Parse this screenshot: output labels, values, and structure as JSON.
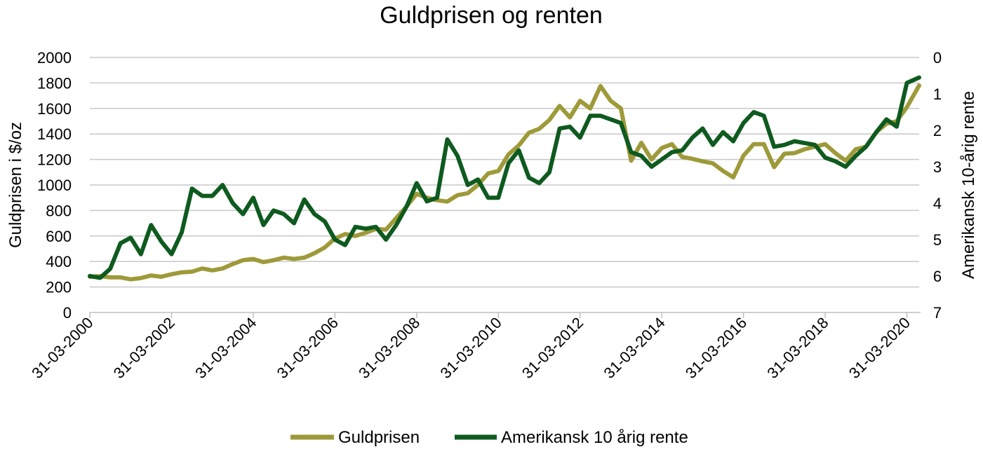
{
  "chart_data": {
    "type": "line",
    "title": "Guldprisen og renten",
    "ylabel": "Guldprisen i $/oz",
    "y2label": "Amerikansk 10-årig rente",
    "ylim": [
      0,
      2000
    ],
    "y2lim": [
      0,
      7
    ],
    "y2_inverted": true,
    "yticks": [
      "0",
      "200",
      "400",
      "600",
      "800",
      "1000",
      "1200",
      "1400",
      "1600",
      "1800",
      "2000"
    ],
    "y2ticks": [
      "0",
      "1",
      "2",
      "3",
      "4",
      "5",
      "6",
      "7"
    ],
    "xticks": [
      "31-03-2000",
      "31-03-2002",
      "31-03-2004",
      "31-03-2006",
      "31-03-2008",
      "31-03-2010",
      "31-03-2012",
      "31-03-2014",
      "31-03-2016",
      "31-03-2018",
      "31-03-2020"
    ],
    "xlim": [
      2000.25,
      2020.55
    ],
    "grid": "horizontal",
    "legend_position": "bottom",
    "colors": {
      "gold": "#9e9a3a",
      "rate": "#0e5a1f"
    },
    "series": [
      {
        "name": "Guldprisen",
        "axis": "left",
        "x": [
          2000.25,
          2000.5,
          2000.75,
          2001.0,
          2001.25,
          2001.5,
          2001.75,
          2002.0,
          2002.25,
          2002.5,
          2002.75,
          2003.0,
          2003.25,
          2003.5,
          2003.75,
          2004.0,
          2004.25,
          2004.5,
          2004.75,
          2005.0,
          2005.25,
          2005.5,
          2005.75,
          2006.0,
          2006.25,
          2006.5,
          2006.75,
          2007.0,
          2007.25,
          2007.5,
          2007.75,
          2008.0,
          2008.25,
          2008.5,
          2008.75,
          2009.0,
          2009.25,
          2009.5,
          2009.75,
          2010.0,
          2010.25,
          2010.5,
          2010.75,
          2011.0,
          2011.25,
          2011.5,
          2011.75,
          2012.0,
          2012.25,
          2012.5,
          2012.75,
          2013.0,
          2013.25,
          2013.5,
          2013.75,
          2014.0,
          2014.25,
          2014.5,
          2014.75,
          2015.0,
          2015.25,
          2015.5,
          2015.75,
          2016.0,
          2016.25,
          2016.5,
          2016.75,
          2017.0,
          2017.25,
          2017.5,
          2017.75,
          2018.0,
          2018.25,
          2018.5,
          2018.75,
          2019.0,
          2019.25,
          2019.5,
          2019.75,
          2020.0,
          2020.25,
          2020.55
        ],
        "values": [
          280,
          285,
          275,
          275,
          260,
          270,
          290,
          280,
          300,
          315,
          320,
          345,
          330,
          345,
          380,
          410,
          420,
          395,
          410,
          430,
          420,
          430,
          465,
          510,
          580,
          615,
          600,
          625,
          655,
          650,
          740,
          830,
          930,
          900,
          880,
          870,
          920,
          935,
          1000,
          1090,
          1110,
          1240,
          1310,
          1410,
          1440,
          1510,
          1620,
          1530,
          1660,
          1600,
          1775,
          1660,
          1600,
          1190,
          1330,
          1200,
          1290,
          1320,
          1220,
          1205,
          1185,
          1170,
          1110,
          1060,
          1230,
          1320,
          1320,
          1140,
          1245,
          1250,
          1280,
          1300,
          1320,
          1250,
          1190,
          1280,
          1300,
          1415,
          1480,
          1500,
          1610,
          1780
        ]
      },
      {
        "name": "Amerikansk 10 årig rente",
        "axis": "right",
        "x": [
          2000.25,
          2000.5,
          2000.75,
          2001.0,
          2001.25,
          2001.5,
          2001.75,
          2002.0,
          2002.25,
          2002.5,
          2002.75,
          2003.0,
          2003.25,
          2003.5,
          2003.75,
          2004.0,
          2004.25,
          2004.5,
          2004.75,
          2005.0,
          2005.25,
          2005.5,
          2005.75,
          2006.0,
          2006.25,
          2006.5,
          2006.75,
          2007.0,
          2007.25,
          2007.5,
          2007.75,
          2008.0,
          2008.25,
          2008.5,
          2008.75,
          2009.0,
          2009.25,
          2009.5,
          2009.75,
          2010.0,
          2010.25,
          2010.5,
          2010.75,
          2011.0,
          2011.25,
          2011.5,
          2011.75,
          2012.0,
          2012.25,
          2012.5,
          2012.75,
          2013.0,
          2013.25,
          2013.5,
          2013.75,
          2014.0,
          2014.25,
          2014.5,
          2014.75,
          2015.0,
          2015.25,
          2015.5,
          2015.75,
          2016.0,
          2016.25,
          2016.5,
          2016.75,
          2017.0,
          2017.25,
          2017.5,
          2017.75,
          2018.0,
          2018.25,
          2018.5,
          2018.75,
          2019.0,
          2019.25,
          2019.5,
          2019.75,
          2020.0,
          2020.25,
          2020.55
        ],
        "values": [
          6.0,
          6.05,
          5.8,
          5.1,
          4.95,
          5.4,
          4.6,
          5.05,
          5.4,
          4.8,
          3.6,
          3.8,
          3.8,
          3.5,
          4.0,
          4.3,
          3.85,
          4.6,
          4.2,
          4.3,
          4.55,
          3.9,
          4.3,
          4.5,
          5.0,
          5.15,
          4.65,
          4.7,
          4.65,
          5.0,
          4.6,
          4.1,
          3.45,
          3.95,
          3.85,
          2.25,
          2.7,
          3.5,
          3.35,
          3.85,
          3.85,
          2.9,
          2.55,
          3.3,
          3.45,
          3.15,
          1.95,
          1.9,
          2.2,
          1.6,
          1.6,
          1.7,
          1.8,
          2.6,
          2.7,
          3.0,
          2.8,
          2.6,
          2.55,
          2.2,
          1.95,
          2.4,
          2.05,
          2.3,
          1.8,
          1.5,
          1.6,
          2.45,
          2.4,
          2.3,
          2.35,
          2.4,
          2.75,
          2.85,
          3.0,
          2.7,
          2.45,
          2.05,
          1.7,
          1.9,
          0.7,
          0.55
        ]
      }
    ]
  }
}
